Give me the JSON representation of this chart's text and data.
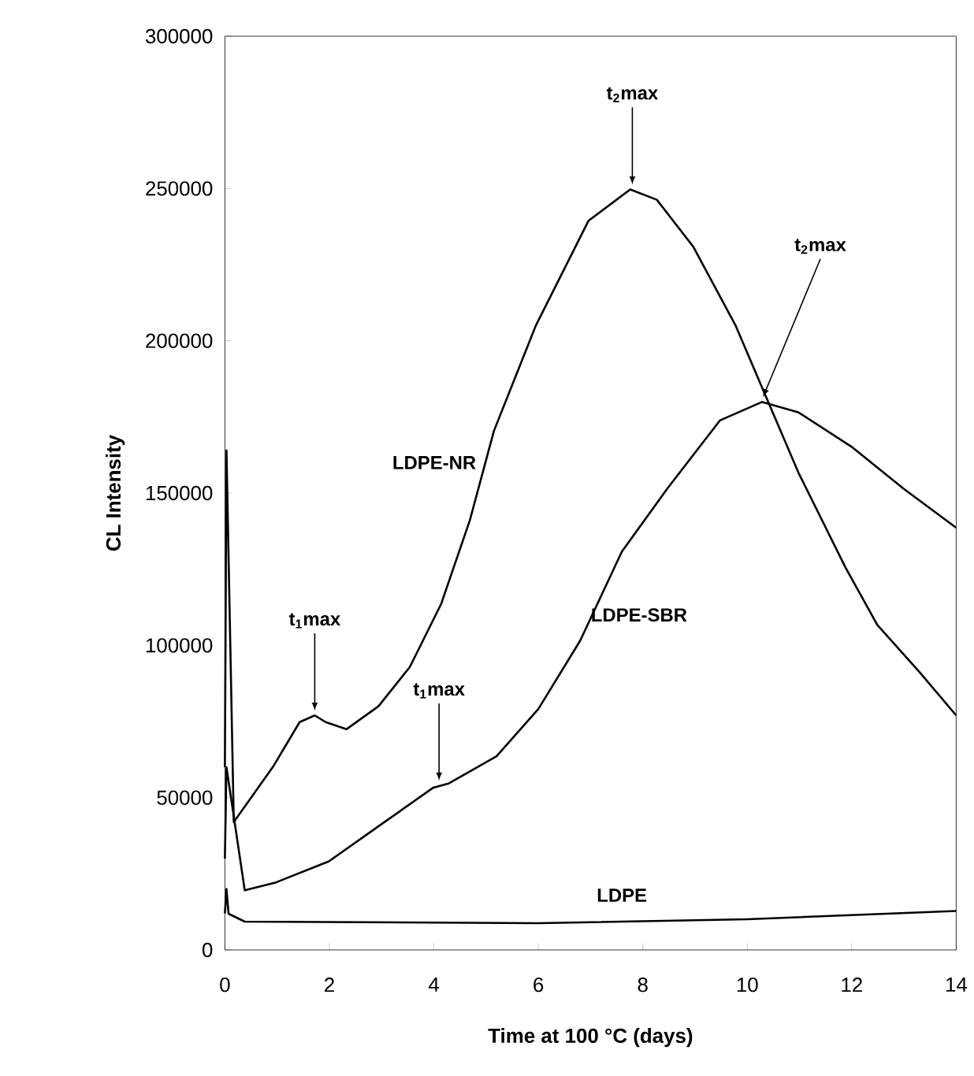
{
  "chart_data": {
    "type": "line",
    "xlabel": "Time at 100 °C (days)",
    "ylabel": "CL Intensity",
    "xlim": [
      0,
      14
    ],
    "xticks": [
      0,
      2,
      4,
      6,
      8,
      10,
      12,
      14
    ],
    "ylim": [
      0,
      300000
    ],
    "yticks": [
      0,
      50000,
      100000,
      150000,
      200000,
      250000,
      300000
    ],
    "grid": false,
    "legend": false,
    "marker": "none",
    "line_style": "solid",
    "series": [
      {
        "name": "LDPE-NR",
        "color": "#000000",
        "x": [
          0,
          0.03,
          0.17,
          0.92,
          1.43,
          1.72,
          1.93,
          2.33,
          2.94,
          3.54,
          4.14,
          4.69,
          5.15,
          5.95,
          6.96,
          7.76,
          8.27,
          8.97,
          9.78,
          10.38,
          10.98,
          11.88,
          12.49,
          13.3,
          14
        ],
        "values": [
          60000,
          164000,
          42000,
          60100,
          74800,
          77000,
          74800,
          72500,
          80000,
          92900,
          113600,
          141100,
          170400,
          204900,
          239400,
          249700,
          246300,
          230800,
          204900,
          180800,
          156700,
          125600,
          106700,
          91200,
          77000
        ]
      },
      {
        "name": "LDPE-SBR",
        "color": "#000000",
        "x": [
          0,
          0.03,
          0.38,
          0.98,
          1.99,
          2.99,
          3.99,
          4.29,
          5.2,
          6.0,
          6.8,
          7.6,
          8.47,
          9.48,
          10.28,
          10.98,
          11.99,
          12.99,
          14
        ],
        "values": [
          30000,
          60000,
          19600,
          22200,
          29100,
          41200,
          53300,
          54700,
          63600,
          79100,
          101500,
          130800,
          151500,
          173900,
          179900,
          176500,
          165300,
          151500,
          138600
        ]
      },
      {
        "name": "LDPE",
        "color": "#000000",
        "x": [
          0,
          0.03,
          0.07,
          0.38,
          6.0,
          10.0,
          14
        ],
        "values": [
          12000,
          20000,
          11900,
          9300,
          8800,
          10100,
          12800
        ]
      }
    ],
    "annotations": [
      {
        "text": "t$_{1}$max",
        "x": 1.72,
        "y": 77000
      },
      {
        "text": "t$_{1}$max",
        "x": 4.1,
        "y": 54000
      },
      {
        "text": "t$_{2}$max",
        "x": 7.8,
        "y": 249700
      },
      {
        "text": "t$_{2}$max",
        "x": 10.3,
        "y": 179900
      }
    ]
  }
}
